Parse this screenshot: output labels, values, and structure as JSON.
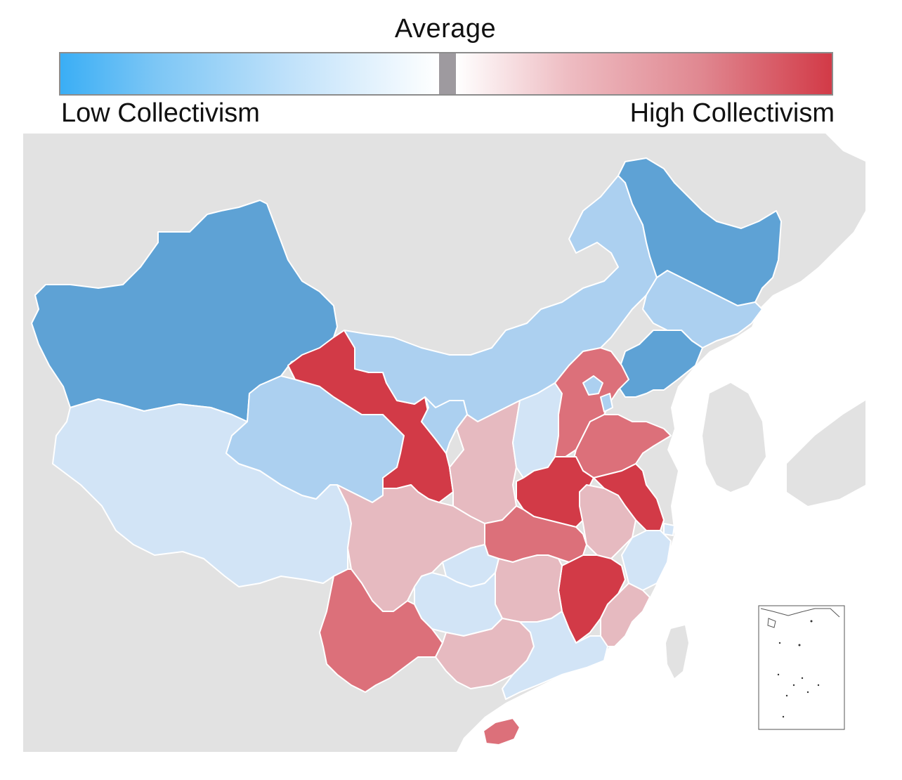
{
  "legend": {
    "title": "Average",
    "low_label": "Low Collectivism",
    "high_label": "High Collectivism",
    "average_color": "#9e9a9f",
    "low_color": "#3aaef5",
    "high_color": "#d23a47"
  },
  "colors": {
    "ocean": "#ffffff",
    "land_outside": "#e2e2e2",
    "border": "#ffffff",
    "inset_frame": "#555555"
  },
  "scale_colors": {
    "low_strong": "#5ea2d5",
    "low_medium": "#acd0f0",
    "low_light": "#d2e4f6",
    "high_light": "#e6bac0",
    "high_medium": "#dc707a",
    "high_strong": "#d23a47"
  },
  "regions": [
    {
      "name": "Xinjiang",
      "level": "low_strong"
    },
    {
      "name": "Tibet",
      "level": "low_light"
    },
    {
      "name": "Qinghai",
      "level": "low_medium"
    },
    {
      "name": "Gansu",
      "level": "high_strong"
    },
    {
      "name": "Inner Mongolia",
      "level": "low_medium"
    },
    {
      "name": "Heilongjiang",
      "level": "low_strong"
    },
    {
      "name": "Jilin",
      "level": "low_medium"
    },
    {
      "name": "Liaoning",
      "level": "low_strong"
    },
    {
      "name": "Ningxia",
      "level": "low_medium"
    },
    {
      "name": "Shaanxi",
      "level": "high_light"
    },
    {
      "name": "Shanxi",
      "level": "low_light"
    },
    {
      "name": "Hebei",
      "level": "high_medium"
    },
    {
      "name": "Beijing",
      "level": "low_medium"
    },
    {
      "name": "Tianjin",
      "level": "low_medium"
    },
    {
      "name": "Shandong",
      "level": "high_medium"
    },
    {
      "name": "Henan",
      "level": "high_strong"
    },
    {
      "name": "Jiangsu",
      "level": "high_strong"
    },
    {
      "name": "Shanghai",
      "level": "low_light"
    },
    {
      "name": "Anhui",
      "level": "high_light"
    },
    {
      "name": "Hubei",
      "level": "high_medium"
    },
    {
      "name": "Sichuan",
      "level": "high_light"
    },
    {
      "name": "Chongqing",
      "level": "low_light"
    },
    {
      "name": "Zhejiang",
      "level": "low_light"
    },
    {
      "name": "Jiangxi",
      "level": "high_strong"
    },
    {
      "name": "Hunan",
      "level": "high_light"
    },
    {
      "name": "Guizhou",
      "level": "low_light"
    },
    {
      "name": "Yunnan",
      "level": "high_medium"
    },
    {
      "name": "Guangxi",
      "level": "high_light"
    },
    {
      "name": "Guangdong",
      "level": "low_light"
    },
    {
      "name": "Fujian",
      "level": "high_light"
    },
    {
      "name": "Hainan",
      "level": "high_medium"
    }
  ]
}
